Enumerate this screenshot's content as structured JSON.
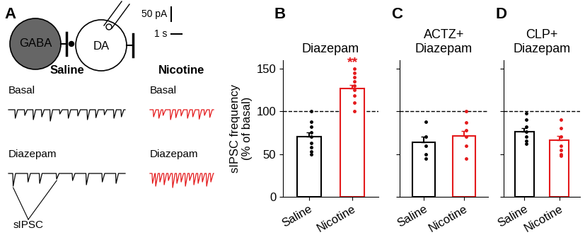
{
  "diagram": {
    "panel": "A",
    "cells": [
      {
        "label": "GABA"
      },
      {
        "label": "DA"
      }
    ],
    "scale_bar_current": {
      "value": 50,
      "label": "50 pA"
    },
    "scale_bar_time": {
      "value": 1,
      "label": "1 s"
    },
    "event_label": "sIPSC",
    "groups": [
      {
        "name": "Saline",
        "color": "#000000",
        "traces": [
          {
            "condition": "Basal",
            "duration_s": 11,
            "events_s": [
              0.6,
              1.5,
              2.3,
              3.1,
              3.9,
              4.8,
              5.6,
              6.5,
              7.4,
              8.2,
              9.0,
              9.9,
              10.6
            ],
            "amplitudes_pA": [
              30,
              20,
              35,
              25,
              40,
              15,
              30,
              22,
              35,
              28,
              18,
              30,
              25
            ]
          },
          {
            "condition": "Diazepam",
            "duration_s": 11,
            "events_s": [
              0.4,
              1.8,
              2.9,
              4.5,
              6.0,
              7.3,
              8.8,
              10.1
            ],
            "amplitudes_pA": [
              45,
              30,
              35,
              20,
              25,
              40,
              30,
              35
            ]
          }
        ]
      },
      {
        "name": "Nicotine",
        "color": "#e41a1c",
        "traces": [
          {
            "condition": "Basal",
            "duration_s": 6,
            "events_s": [
              0.3,
              0.8,
              1.2,
              1.9,
              2.4,
              2.9,
              3.5,
              4.0,
              4.6,
              5.1,
              5.6
            ],
            "amplitudes_pA": [
              25,
              30,
              20,
              35,
              28,
              22,
              30,
              25,
              33,
              20,
              27
            ]
          },
          {
            "condition": "Diazepam",
            "duration_s": 6,
            "events_s": [
              0.2,
              0.5,
              0.9,
              1.3,
              1.7,
              2.1,
              2.5,
              2.9,
              3.3,
              3.7,
              4.1,
              4.5,
              4.9,
              5.3,
              5.7
            ],
            "amplitudes_pA": [
              35,
              45,
              30,
              40,
              25,
              50,
              35,
              30,
              45,
              25,
              40,
              35,
              30,
              45,
              30
            ]
          }
        ]
      }
    ]
  },
  "chart_data": [
    {
      "panel": "B",
      "type": "bar",
      "title": "Diazepam",
      "y_label": "sIPSC frequency\n(% of basal)",
      "categories": [
        "Saline",
        "Nicotine"
      ],
      "values": [
        70,
        127
      ],
      "errors": [
        5,
        4
      ],
      "points": [
        [
          100,
          88,
          82,
          75,
          70,
          63,
          58,
          53,
          50
        ],
        [
          150,
          145,
          140,
          135,
          130,
          125,
          118,
          110,
          100
        ]
      ],
      "colors": [
        "#000000",
        "#e41a1c"
      ],
      "ylim": [
        0,
        160
      ],
      "yticks": [
        0,
        50,
        100,
        150
      ],
      "reference_line": 100,
      "annotations": [
        {
          "category": "Nicotine",
          "text": "**"
        }
      ]
    },
    {
      "panel": "C",
      "type": "bar",
      "title": "ACTZ+\nDiazepam",
      "categories": [
        "Saline",
        "Nicotine"
      ],
      "values": [
        64,
        71
      ],
      "errors": [
        6,
        6
      ],
      "points": [
        [
          88,
          70,
          60,
          50,
          45
        ],
        [
          100,
          87,
          78,
          70,
          60,
          45
        ]
      ],
      "colors": [
        "#000000",
        "#e41a1c"
      ],
      "ylim": [
        0,
        160
      ],
      "yticks": [
        0,
        50,
        100,
        150
      ],
      "reference_line": 100,
      "tick_labels": "x"
    },
    {
      "panel": "D",
      "type": "bar",
      "title": "CLP+\nDiazepam",
      "categories": [
        "Saline",
        "Nicotine"
      ],
      "values": [
        76,
        66
      ],
      "errors": [
        4,
        5
      ],
      "points": [
        [
          98,
          90,
          82,
          76,
          70,
          65,
          62
        ],
        [
          90,
          80,
          70,
          60,
          55,
          50,
          48
        ]
      ],
      "colors": [
        "#000000",
        "#e41a1c"
      ],
      "ylim": [
        0,
        160
      ],
      "yticks": [
        0,
        50,
        100,
        150
      ],
      "reference_line": 100,
      "tick_labels": "x"
    }
  ]
}
